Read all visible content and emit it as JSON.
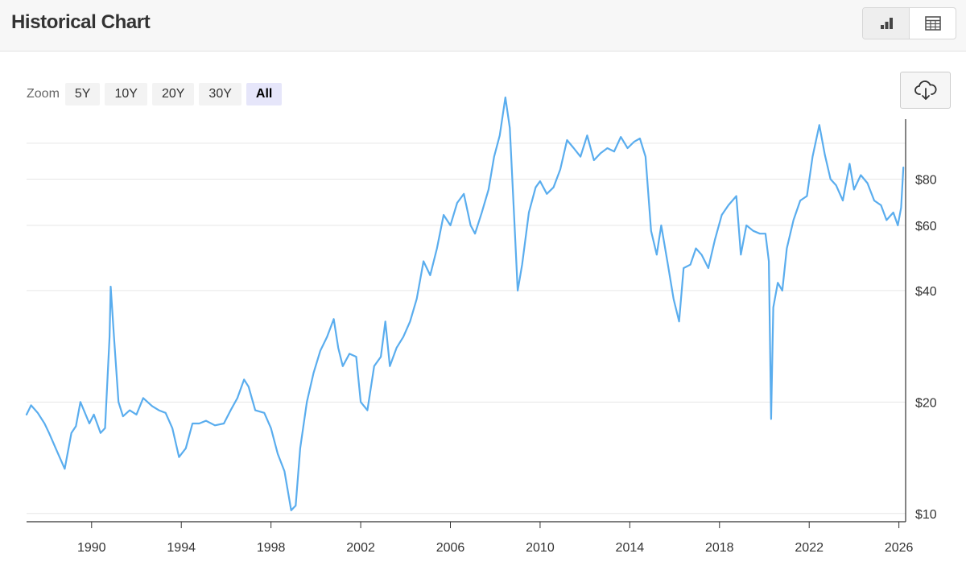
{
  "header": {
    "title": "Historical Chart",
    "view_chart_icon": "bar-chart-icon",
    "view_table_icon": "table-grid-icon"
  },
  "zoom": {
    "label": "Zoom",
    "options": [
      "5Y",
      "10Y",
      "20Y",
      "30Y",
      "All"
    ],
    "active": "All"
  },
  "download_icon": "cloud-download-icon",
  "colors": {
    "line": "#5aadee",
    "grid": "#e6e6e6",
    "axis": "#333333"
  },
  "chart_data": {
    "type": "line",
    "title": "",
    "xlabel": "",
    "ylabel": "",
    "yscale": "log",
    "ylim": [
      9.5,
      115
    ],
    "xlim": [
      1987.1,
      2026.3
    ],
    "yticks": [
      {
        "value": 10,
        "label": "$10"
      },
      {
        "value": 20,
        "label": "$20"
      },
      {
        "value": 40,
        "label": "$40"
      },
      {
        "value": 60,
        "label": "$60"
      },
      {
        "value": 80,
        "label": "$80"
      }
    ],
    "grid_extra": [
      100
    ],
    "xticks": [
      1990,
      1994,
      1998,
      2002,
      2006,
      2010,
      2014,
      2018,
      2022,
      2026
    ],
    "grid": true,
    "legend": "none",
    "series": [
      {
        "points": [
          [
            1987.1,
            18.5
          ],
          [
            1987.3,
            19.6
          ],
          [
            1987.6,
            18.7
          ],
          [
            1987.9,
            17.5
          ],
          [
            1988.1,
            16.5
          ],
          [
            1988.4,
            15.0
          ],
          [
            1988.8,
            13.2
          ],
          [
            1989.1,
            16.5
          ],
          [
            1989.3,
            17.2
          ],
          [
            1989.5,
            20.0
          ],
          [
            1989.9,
            17.5
          ],
          [
            1990.1,
            18.5
          ],
          [
            1990.4,
            16.5
          ],
          [
            1990.6,
            17.0
          ],
          [
            1990.8,
            30.0
          ],
          [
            1990.85,
            41.0
          ],
          [
            1991.0,
            30.0
          ],
          [
            1991.2,
            20.0
          ],
          [
            1991.4,
            18.3
          ],
          [
            1991.7,
            19.0
          ],
          [
            1992.0,
            18.5
          ],
          [
            1992.3,
            20.5
          ],
          [
            1992.7,
            19.5
          ],
          [
            1993.0,
            19.0
          ],
          [
            1993.3,
            18.7
          ],
          [
            1993.6,
            17.0
          ],
          [
            1993.9,
            14.2
          ],
          [
            1994.2,
            15.0
          ],
          [
            1994.5,
            17.5
          ],
          [
            1994.8,
            17.5
          ],
          [
            1995.1,
            17.8
          ],
          [
            1995.5,
            17.3
          ],
          [
            1995.9,
            17.5
          ],
          [
            1996.2,
            19.0
          ],
          [
            1996.5,
            20.5
          ],
          [
            1996.8,
            23.0
          ],
          [
            1997.0,
            22.0
          ],
          [
            1997.3,
            19.0
          ],
          [
            1997.7,
            18.7
          ],
          [
            1998.0,
            17.0
          ],
          [
            1998.3,
            14.5
          ],
          [
            1998.6,
            13.0
          ],
          [
            1998.9,
            10.2
          ],
          [
            1999.1,
            10.5
          ],
          [
            1999.3,
            15.0
          ],
          [
            1999.6,
            20.0
          ],
          [
            1999.9,
            24.0
          ],
          [
            2000.2,
            27.5
          ],
          [
            2000.5,
            30.0
          ],
          [
            2000.8,
            33.5
          ],
          [
            2001.0,
            28.0
          ],
          [
            2001.2,
            25.0
          ],
          [
            2001.5,
            27.0
          ],
          [
            2001.8,
            26.5
          ],
          [
            2002.0,
            20.0
          ],
          [
            2002.3,
            19.0
          ],
          [
            2002.6,
            25.0
          ],
          [
            2002.9,
            26.5
          ],
          [
            2003.1,
            33.0
          ],
          [
            2003.3,
            25.0
          ],
          [
            2003.6,
            28.0
          ],
          [
            2003.9,
            30.0
          ],
          [
            2004.2,
            33.0
          ],
          [
            2004.5,
            38.0
          ],
          [
            2004.8,
            48.0
          ],
          [
            2005.1,
            44.0
          ],
          [
            2005.4,
            52.0
          ],
          [
            2005.7,
            64.0
          ],
          [
            2006.0,
            60.0
          ],
          [
            2006.3,
            69.0
          ],
          [
            2006.6,
            73.0
          ],
          [
            2006.9,
            60.0
          ],
          [
            2007.1,
            57.0
          ],
          [
            2007.4,
            65.0
          ],
          [
            2007.7,
            75.0
          ],
          [
            2007.95,
            92.0
          ],
          [
            2008.2,
            105.0
          ],
          [
            2008.45,
            133.0
          ],
          [
            2008.65,
            110.0
          ],
          [
            2008.85,
            62.0
          ],
          [
            2009.0,
            40.0
          ],
          [
            2009.2,
            47.0
          ],
          [
            2009.5,
            65.0
          ],
          [
            2009.8,
            76.0
          ],
          [
            2010.0,
            79.0
          ],
          [
            2010.3,
            73.0
          ],
          [
            2010.6,
            76.0
          ],
          [
            2010.9,
            85.0
          ],
          [
            2011.2,
            102.0
          ],
          [
            2011.5,
            97.0
          ],
          [
            2011.8,
            92.0
          ],
          [
            2012.1,
            105.0
          ],
          [
            2012.4,
            90.0
          ],
          [
            2012.7,
            94.0
          ],
          [
            2013.0,
            97.0
          ],
          [
            2013.3,
            95.0
          ],
          [
            2013.6,
            104.0
          ],
          [
            2013.9,
            97.0
          ],
          [
            2014.2,
            101.0
          ],
          [
            2014.45,
            103.0
          ],
          [
            2014.7,
            92.0
          ],
          [
            2014.95,
            58.0
          ],
          [
            2015.2,
            50.0
          ],
          [
            2015.4,
            60.0
          ],
          [
            2015.7,
            47.0
          ],
          [
            2015.95,
            38.0
          ],
          [
            2016.2,
            33.0
          ],
          [
            2016.4,
            46.0
          ],
          [
            2016.7,
            47.0
          ],
          [
            2016.95,
            52.0
          ],
          [
            2017.2,
            50.0
          ],
          [
            2017.5,
            46.0
          ],
          [
            2017.8,
            55.0
          ],
          [
            2018.1,
            64.0
          ],
          [
            2018.4,
            68.0
          ],
          [
            2018.75,
            72.0
          ],
          [
            2018.95,
            50.0
          ],
          [
            2019.2,
            60.0
          ],
          [
            2019.5,
            58.0
          ],
          [
            2019.8,
            57.0
          ],
          [
            2020.05,
            57.0
          ],
          [
            2020.2,
            48.0
          ],
          [
            2020.3,
            18.0
          ],
          [
            2020.4,
            36.0
          ],
          [
            2020.6,
            42.0
          ],
          [
            2020.8,
            40.0
          ],
          [
            2021.0,
            52.0
          ],
          [
            2021.3,
            62.0
          ],
          [
            2021.6,
            70.0
          ],
          [
            2021.9,
            72.0
          ],
          [
            2022.15,
            92.0
          ],
          [
            2022.45,
            112.0
          ],
          [
            2022.7,
            93.0
          ],
          [
            2022.95,
            80.0
          ],
          [
            2023.2,
            77.0
          ],
          [
            2023.5,
            70.0
          ],
          [
            2023.8,
            88.0
          ],
          [
            2024.0,
            75.0
          ],
          [
            2024.3,
            82.0
          ],
          [
            2024.6,
            78.0
          ],
          [
            2024.9,
            70.0
          ],
          [
            2025.2,
            68.0
          ],
          [
            2025.45,
            62.0
          ],
          [
            2025.75,
            65.0
          ],
          [
            2025.95,
            60.0
          ],
          [
            2026.1,
            67.0
          ],
          [
            2026.2,
            86.0
          ]
        ]
      }
    ]
  }
}
